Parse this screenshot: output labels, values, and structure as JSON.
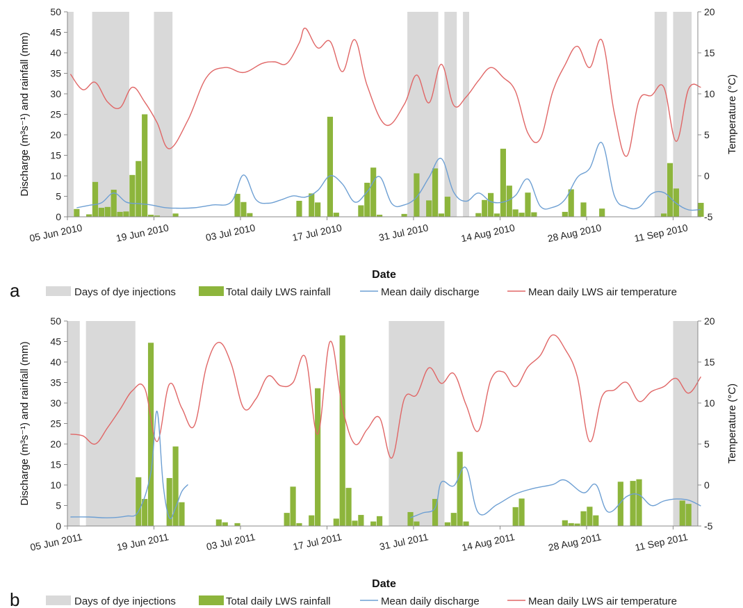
{
  "chart_data": [
    {
      "type": "bar",
      "panel_label": "a",
      "xlabel": "Date",
      "ylabel": "Discharge (m³s⁻¹) and rainfall (mm)",
      "y2label": "Temperature (°C)",
      "ylim": [
        0,
        50
      ],
      "y2lim": [
        -5,
        20
      ],
      "yticks": [
        0,
        5,
        10,
        15,
        20,
        25,
        30,
        35,
        40,
        45,
        50
      ],
      "y2ticks": [
        -5,
        0,
        5,
        10,
        15,
        20
      ],
      "xlim": [
        "2010-06-05",
        "2010-09-15"
      ],
      "xticks": [
        {
          "date": "2010-06-05",
          "label": "05 Jun 2010"
        },
        {
          "date": "2010-06-19",
          "label": "19 Jun 2010"
        },
        {
          "date": "2010-07-03",
          "label": "03 Jul 2010"
        },
        {
          "date": "2010-07-17",
          "label": "17 Jul 2010"
        },
        {
          "date": "2010-07-31",
          "label": "31 Jul 2010"
        },
        {
          "date": "2010-08-14",
          "label": "14 Aug 2010"
        },
        {
          "date": "2010-08-28",
          "label": "28 Aug 2010"
        },
        {
          "date": "2010-09-11",
          "label": "11 Sep 2010"
        }
      ],
      "grid": false,
      "legend_position": "bottom",
      "legend": [
        "Days of dye injections",
        "Total daily LWS rainfall",
        "Mean daily discharge",
        "Mean daily LWS air temperature"
      ],
      "colors": {
        "dye": "#d9d9d9",
        "rain": "#8db53c",
        "discharge": "#6d9fd3",
        "temperature": "#e06666"
      },
      "dye_injection_periods": [
        [
          "2010-06-05",
          "2010-06-06"
        ],
        [
          "2010-06-09",
          "2010-06-15"
        ],
        [
          "2010-06-19",
          "2010-06-22"
        ],
        [
          "2010-07-30",
          "2010-08-04"
        ],
        [
          "2010-08-05",
          "2010-08-07"
        ],
        [
          "2010-08-08",
          "2010-08-09"
        ],
        [
          "2010-09-08",
          "2010-09-10"
        ],
        [
          "2010-09-11",
          "2010-09-14"
        ]
      ],
      "rainfall": {
        "name": "Total daily LWS rainfall",
        "x": [
          "2010-06-06",
          "2010-06-08",
          "2010-06-09",
          "2010-06-10",
          "2010-06-11",
          "2010-06-12",
          "2010-06-13",
          "2010-06-14",
          "2010-06-15",
          "2010-06-16",
          "2010-06-17",
          "2010-06-18",
          "2010-06-19",
          "2010-06-22",
          "2010-07-02",
          "2010-07-03",
          "2010-07-04",
          "2010-07-12",
          "2010-07-14",
          "2010-07-15",
          "2010-07-17",
          "2010-07-18",
          "2010-07-22",
          "2010-07-23",
          "2010-07-24",
          "2010-07-25",
          "2010-07-29",
          "2010-07-31",
          "2010-08-02",
          "2010-08-03",
          "2010-08-04",
          "2010-08-05",
          "2010-08-10",
          "2010-08-11",
          "2010-08-12",
          "2010-08-13",
          "2010-08-14",
          "2010-08-15",
          "2010-08-16",
          "2010-08-17",
          "2010-08-18",
          "2010-08-19",
          "2010-08-24",
          "2010-08-25",
          "2010-08-27",
          "2010-08-30",
          "2010-09-09",
          "2010-09-10",
          "2010-09-11",
          "2010-09-15"
        ],
        "values": [
          1.9,
          0.6,
          8.5,
          2.2,
          2.4,
          6.6,
          1.2,
          1.3,
          10.2,
          13.6,
          25.0,
          0.5,
          0.3,
          0.8,
          5.6,
          3.6,
          0.9,
          3.9,
          5.7,
          3.5,
          24.4,
          1.0,
          2.8,
          8.3,
          12.0,
          0.5,
          0.7,
          10.6,
          4.0,
          11.8,
          0.8,
          4.9,
          0.9,
          4.1,
          5.8,
          0.8,
          16.6,
          7.6,
          1.8,
          1.0,
          5.9,
          1.1,
          1.2,
          6.7,
          3.5,
          2.0,
          0.8,
          13.1,
          6.9,
          3.4
        ]
      },
      "discharge": {
        "name": "Mean daily discharge",
        "x": [
          "2010-06-06",
          "2010-06-08",
          "2010-06-10",
          "2010-06-12",
          "2010-06-14",
          "2010-06-16",
          "2010-06-18",
          "2010-06-20",
          "2010-06-22",
          "2010-06-25",
          "2010-06-28",
          "2010-07-01",
          "2010-07-03",
          "2010-07-05",
          "2010-07-07",
          "2010-07-09",
          "2010-07-11",
          "2010-07-13",
          "2010-07-15",
          "2010-07-17",
          "2010-07-19",
          "2010-07-21",
          "2010-07-23",
          "2010-07-25",
          "2010-07-27",
          "2010-07-29",
          "2010-07-31",
          "2010-08-02",
          "2010-08-04",
          "2010-08-06",
          "2010-08-08",
          "2010-08-10",
          "2010-08-12",
          "2010-08-14",
          "2010-08-16",
          "2010-08-18",
          "2010-08-20",
          "2010-08-22",
          "2010-08-24",
          "2010-08-26",
          "2010-08-28",
          "2010-08-30",
          "2010-09-01",
          "2010-09-03",
          "2010-09-05",
          "2010-09-07",
          "2010-09-09",
          "2010-09-11",
          "2010-09-13",
          "2010-09-15"
        ],
        "values": [
          2.2,
          2.8,
          3.4,
          5.8,
          3.6,
          3.2,
          2.9,
          2.3,
          2.1,
          2.2,
          2.9,
          3.6,
          10.2,
          4.2,
          3.3,
          4.1,
          5.1,
          4.8,
          6.4,
          10.0,
          8.0,
          3.6,
          6.1,
          9.8,
          3.2,
          2.9,
          4.8,
          9.6,
          14.2,
          6.0,
          3.8,
          5.8,
          3.7,
          3.6,
          5.2,
          9.2,
          2.6,
          2.3,
          4.2,
          9.6,
          11.8,
          18.0,
          5.1,
          2.4,
          2.3,
          5.6,
          5.9,
          3.3,
          1.7,
          1.8
        ]
      },
      "temperature": {
        "name": "Mean daily LWS air temperature",
        "x": [
          "2010-06-05",
          "2010-06-07",
          "2010-06-09",
          "2010-06-11",
          "2010-06-13",
          "2010-06-15",
          "2010-06-17",
          "2010-06-19",
          "2010-06-21",
          "2010-06-24",
          "2010-06-27",
          "2010-06-30",
          "2010-07-03",
          "2010-07-06",
          "2010-07-08",
          "2010-07-10",
          "2010-07-12",
          "2010-07-13",
          "2010-07-15",
          "2010-07-17",
          "2010-07-19",
          "2010-07-21",
          "2010-07-23",
          "2010-07-26",
          "2010-07-29",
          "2010-07-31",
          "2010-08-02",
          "2010-08-04",
          "2010-08-06",
          "2010-08-08",
          "2010-08-10",
          "2010-08-12",
          "2010-08-14",
          "2010-08-16",
          "2010-08-18",
          "2010-08-20",
          "2010-08-22",
          "2010-08-24",
          "2010-08-26",
          "2010-08-28",
          "2010-08-30",
          "2010-09-01",
          "2010-09-03",
          "2010-09-05",
          "2010-09-07",
          "2010-09-09",
          "2010-09-11",
          "2010-09-13",
          "2010-09-15"
        ],
        "values": [
          12.4,
          10.5,
          11.4,
          9.0,
          8.3,
          10.8,
          9.0,
          6.5,
          3.3,
          6.8,
          12.0,
          13.2,
          12.6,
          13.7,
          13.9,
          13.7,
          16.2,
          18.0,
          15.6,
          16.4,
          12.7,
          16.6,
          11.0,
          6.2,
          8.7,
          12.3,
          8.9,
          13.6,
          8.6,
          9.6,
          11.6,
          13.2,
          12.0,
          10.3,
          5.2,
          4.5,
          10.2,
          13.5,
          15.8,
          13.2,
          16.5,
          7.6,
          2.4,
          9.2,
          9.8,
          10.8,
          4.2,
          10.6,
          10.8
        ]
      }
    },
    {
      "type": "bar",
      "panel_label": "b",
      "xlabel": "Date",
      "ylabel": "Discharge (m³s⁻¹) and rainfall (mm)",
      "y2label": "Temperature (°C)",
      "ylim": [
        0,
        50
      ],
      "y2lim": [
        -5,
        20
      ],
      "yticks": [
        0,
        5,
        10,
        15,
        20,
        25,
        30,
        35,
        40,
        45,
        50
      ],
      "y2ticks": [
        -5,
        0,
        5,
        10,
        15,
        20
      ],
      "xlim": [
        "2011-06-05",
        "2011-09-15"
      ],
      "xticks": [
        {
          "date": "2011-06-05",
          "label": "05 Jun 2011"
        },
        {
          "date": "2011-06-19",
          "label": "19 Jun 2011"
        },
        {
          "date": "2011-07-03",
          "label": "03 Jul 2011"
        },
        {
          "date": "2011-07-17",
          "label": "17 Jul 2011"
        },
        {
          "date": "2011-07-31",
          "label": "31 Jul 2011"
        },
        {
          "date": "2011-08-14",
          "label": "14 Aug 2011"
        },
        {
          "date": "2011-08-28",
          "label": "28 Aug 2011"
        },
        {
          "date": "2011-09-11",
          "label": "11 Sep 2011"
        }
      ],
      "grid": false,
      "legend_position": "bottom",
      "legend": [
        "Days of dye injections",
        "Total daily LWS rainfall",
        "Mean daily discharge",
        "Mean daily LWS air temperature"
      ],
      "colors": {
        "dye": "#d9d9d9",
        "rain": "#8db53c",
        "discharge": "#6d9fd3",
        "temperature": "#e06666"
      },
      "dye_injection_periods": [
        [
          "2011-06-05",
          "2011-06-07"
        ],
        [
          "2011-06-08",
          "2011-06-16"
        ],
        [
          "2011-07-27",
          "2011-08-05"
        ],
        [
          "2011-09-11",
          "2011-09-15"
        ]
      ],
      "rainfall": {
        "name": "Total daily LWS rainfall",
        "x": [
          "2011-06-16",
          "2011-06-17",
          "2011-06-18",
          "2011-06-21",
          "2011-06-22",
          "2011-06-23",
          "2011-06-29",
          "2011-06-30",
          "2011-07-02",
          "2011-07-10",
          "2011-07-11",
          "2011-07-12",
          "2011-07-14",
          "2011-07-15",
          "2011-07-18",
          "2011-07-19",
          "2011-07-20",
          "2011-07-21",
          "2011-07-22",
          "2011-07-24",
          "2011-07-25",
          "2011-07-30",
          "2011-07-31",
          "2011-08-03",
          "2011-08-05",
          "2011-08-06",
          "2011-08-07",
          "2011-08-08",
          "2011-08-16",
          "2011-08-17",
          "2011-08-24",
          "2011-08-25",
          "2011-08-26",
          "2011-08-27",
          "2011-08-28",
          "2011-08-29",
          "2011-09-02",
          "2011-09-04",
          "2011-09-05",
          "2011-09-12",
          "2011-09-13"
        ],
        "values": [
          11.9,
          6.6,
          44.7,
          11.7,
          19.4,
          5.8,
          1.6,
          0.9,
          0.7,
          3.2,
          9.6,
          0.7,
          2.6,
          33.6,
          1.8,
          46.5,
          9.3,
          1.3,
          2.7,
          1.1,
          2.4,
          3.4,
          1.1,
          6.6,
          0.9,
          3.2,
          18.1,
          1.1,
          4.6,
          6.7,
          1.4,
          0.7,
          0.6,
          3.6,
          4.7,
          2.6,
          10.8,
          11.0,
          11.4,
          6.2,
          5.4
        ]
      },
      "discharge": {
        "name": "Mean daily discharge",
        "x": [
          "2011-06-05",
          "2011-06-08",
          "2011-06-11",
          "2011-06-14",
          "2011-06-16",
          "2011-06-18",
          "2011-06-19",
          "2011-06-20",
          "2011-06-21",
          "2011-06-22",
          "2011-06-23",
          "2011-06-24"
        ],
        "values": [
          2.2,
          2.2,
          2.0,
          2.4,
          3.6,
          13.0,
          28.0,
          10.0,
          2.0,
          4.5,
          8.4,
          10.1
        ]
      },
      "discharge_2": {
        "name": "Mean daily discharge",
        "x": [
          "2011-07-30",
          "2011-08-01",
          "2011-08-03",
          "2011-08-04",
          "2011-08-06",
          "2011-08-08",
          "2011-08-10",
          "2011-08-13",
          "2011-08-16",
          "2011-08-19",
          "2011-08-22",
          "2011-08-24",
          "2011-08-27",
          "2011-08-29",
          "2011-08-31",
          "2011-09-03",
          "2011-09-05",
          "2011-09-07",
          "2011-09-09",
          "2011-09-11",
          "2011-09-13",
          "2011-09-15"
        ],
        "values": [
          2.0,
          3.2,
          4.4,
          10.7,
          9.8,
          14.2,
          3.2,
          5.2,
          7.8,
          9.2,
          10.1,
          11.2,
          8.1,
          10.1,
          3.4,
          7.2,
          7.6,
          5.0,
          6.1,
          6.6,
          6.3,
          4.9
        ]
      },
      "temperature": {
        "name": "Mean daily LWS air temperature",
        "x": [
          "2011-06-05",
          "2011-06-07",
          "2011-06-09",
          "2011-06-11",
          "2011-06-13",
          "2011-06-15",
          "2011-06-17",
          "2011-06-19",
          "2011-06-21",
          "2011-06-23",
          "2011-06-25",
          "2011-06-27",
          "2011-06-29",
          "2011-07-01",
          "2011-07-03",
          "2011-07-05",
          "2011-07-07",
          "2011-07-09",
          "2011-07-11",
          "2011-07-13",
          "2011-07-15",
          "2011-07-17",
          "2011-07-19",
          "2011-07-21",
          "2011-07-23",
          "2011-07-25",
          "2011-07-27",
          "2011-07-29",
          "2011-07-31",
          "2011-08-02",
          "2011-08-04",
          "2011-08-06",
          "2011-08-08",
          "2011-08-10",
          "2011-08-12",
          "2011-08-14",
          "2011-08-16",
          "2011-08-18",
          "2011-08-20",
          "2011-08-22",
          "2011-08-24",
          "2011-08-26",
          "2011-08-28",
          "2011-08-30",
          "2011-09-01",
          "2011-09-03",
          "2011-09-05",
          "2011-09-07",
          "2011-09-09",
          "2011-09-11",
          "2011-09-13",
          "2011-09-15"
        ],
        "values": [
          6.2,
          6.0,
          5.0,
          7.0,
          9.2,
          11.5,
          11.8,
          5.3,
          12.3,
          9.4,
          7.2,
          14.5,
          17.4,
          14.8,
          9.4,
          10.5,
          13.3,
          12.1,
          12.5,
          15.6,
          6.2,
          17.5,
          9.4,
          5.0,
          6.8,
          8.2,
          3.3,
          10.5,
          11.0,
          14.3,
          12.4,
          13.6,
          9.8,
          6.6,
          12.8,
          13.8,
          12.0,
          14.4,
          15.8,
          18.3,
          16.6,
          13.2,
          5.3,
          10.8,
          11.6,
          12.5,
          10.2,
          11.4,
          12.0,
          13.0,
          11.2,
          13.2
        ]
      }
    }
  ]
}
